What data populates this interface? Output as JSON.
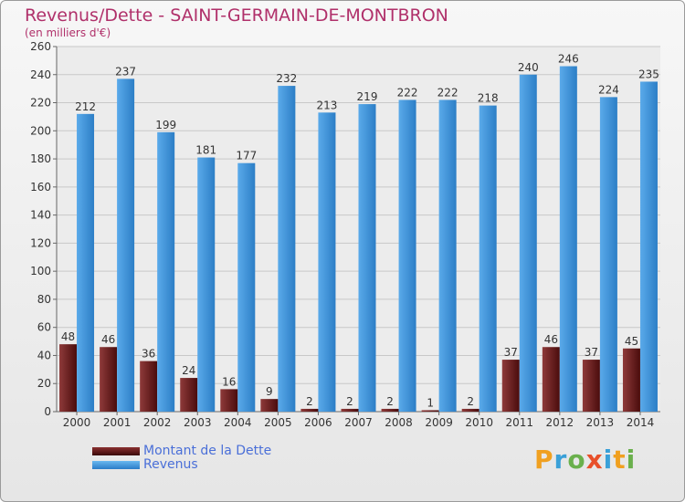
{
  "header": {
    "title": "Revenus/Dette - SAINT-GERMAIN-DE-MONTBRON",
    "subtitle": "(en milliers d'€)"
  },
  "chart_data": {
    "type": "bar",
    "categories": [
      "2000",
      "2001",
      "2002",
      "2003",
      "2004",
      "2005",
      "2006",
      "2007",
      "2008",
      "2009",
      "2010",
      "2011",
      "2012",
      "2013",
      "2014"
    ],
    "series": [
      {
        "name": "Montant de la Dette",
        "color": "#6b1a1a",
        "values": [
          48,
          46,
          36,
          24,
          16,
          9,
          2,
          2,
          2,
          1,
          2,
          37,
          46,
          37,
          45
        ]
      },
      {
        "name": "Revenus",
        "color": "#3f92dc",
        "values": [
          212,
          237,
          199,
          181,
          177,
          232,
          213,
          219,
          222,
          222,
          218,
          240,
          246,
          224,
          235
        ]
      }
    ],
    "ylim": [
      0,
      260
    ],
    "yticks": [
      0,
      20,
      40,
      60,
      80,
      100,
      120,
      140,
      160,
      180,
      200,
      220,
      240,
      260
    ],
    "grid": true,
    "legend_position": "bottom-left"
  },
  "legend": {
    "dette_label": "Montant de la Dette",
    "revenus_label": "Revenus"
  },
  "logo": {
    "letters": [
      "P",
      "r",
      "o",
      "x",
      "i",
      "t",
      "i"
    ],
    "colors": [
      "#f0a020",
      "#3aa0d8",
      "#6ab04c",
      "#e8502a",
      "#3aa0d8",
      "#f0a020",
      "#6ab04c"
    ]
  }
}
